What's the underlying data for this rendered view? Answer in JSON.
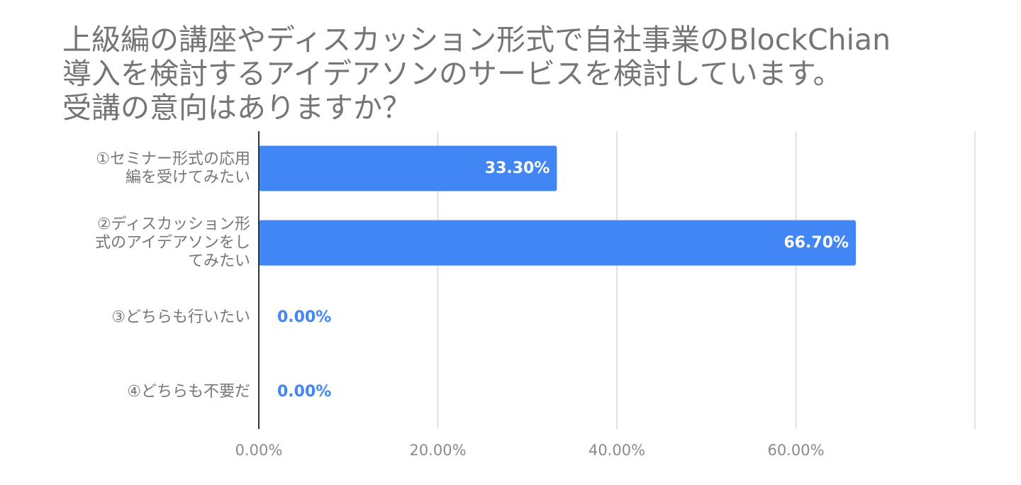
{
  "chart_data": {
    "type": "bar",
    "orientation": "horizontal",
    "title": "上級編の講座やディスカッション形式で自社事業のBlockChian\n導入を検討するアイデアソンのサービスを検討しています。\n受講の意向はありますか？",
    "categories": [
      "①セミナー形式の応用\n編を受けてみたい",
      "②ディスカッション形\n式のアイデアソンをし\nてみたい",
      "③どちらも行いたい",
      "④どちらも不要だ"
    ],
    "values": [
      33.3,
      66.7,
      0.0,
      0.0
    ],
    "data_labels": [
      "33.30%",
      "66.70%",
      "0.00%",
      "0.00%"
    ],
    "xlim": [
      0,
      80
    ],
    "x_ticks": [
      0,
      20,
      40,
      60
    ],
    "x_tick_labels": [
      "0.00%",
      "20.00%",
      "40.00%",
      "60.00%"
    ],
    "grid": true,
    "legend": "none",
    "colors": {
      "bar": "#4285f4",
      "label_inside": "#ffffff",
      "label_outside": "#4285f4",
      "grid": "#d9d9d9",
      "axis": "#333333"
    }
  }
}
